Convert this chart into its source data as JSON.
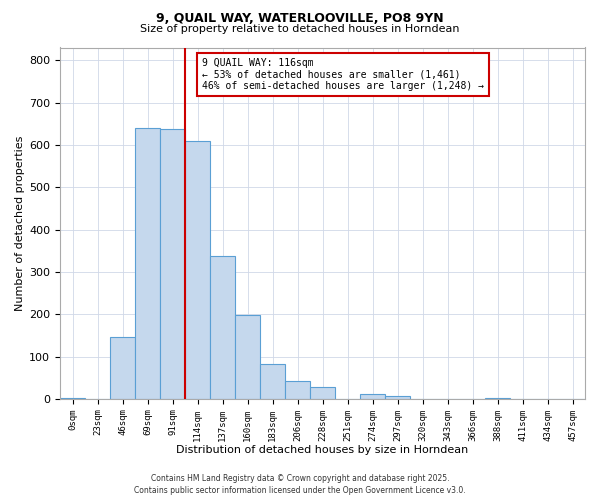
{
  "title": "9, QUAIL WAY, WATERLOOVILLE, PO8 9YN",
  "subtitle": "Size of property relative to detached houses in Horndean",
  "xlabel": "Distribution of detached houses by size in Horndean",
  "ylabel": "Number of detached properties",
  "bar_labels": [
    "0sqm",
    "23sqm",
    "46sqm",
    "69sqm",
    "91sqm",
    "114sqm",
    "137sqm",
    "160sqm",
    "183sqm",
    "206sqm",
    "228sqm",
    "251sqm",
    "274sqm",
    "297sqm",
    "320sqm",
    "343sqm",
    "366sqm",
    "388sqm",
    "411sqm",
    "434sqm",
    "457sqm"
  ],
  "bar_values": [
    3,
    0,
    145,
    640,
    638,
    610,
    338,
    198,
    82,
    43,
    27,
    0,
    11,
    7,
    0,
    0,
    0,
    2,
    0,
    0,
    0
  ],
  "bar_color": "#c5d8ed",
  "bar_edge_color": "#5a9fd4",
  "vline_color": "#cc0000",
  "ylim": [
    0,
    830
  ],
  "yticks": [
    0,
    100,
    200,
    300,
    400,
    500,
    600,
    700,
    800
  ],
  "annotation_title": "9 QUAIL WAY: 116sqm",
  "annotation_line1": "← 53% of detached houses are smaller (1,461)",
  "annotation_line2": "46% of semi-detached houses are larger (1,248) →",
  "annotation_box_color": "#cc0000",
  "bg_color": "#ffffff",
  "grid_color": "#d0d8e8",
  "footer1": "Contains HM Land Registry data © Crown copyright and database right 2025.",
  "footer2": "Contains public sector information licensed under the Open Government Licence v3.0."
}
